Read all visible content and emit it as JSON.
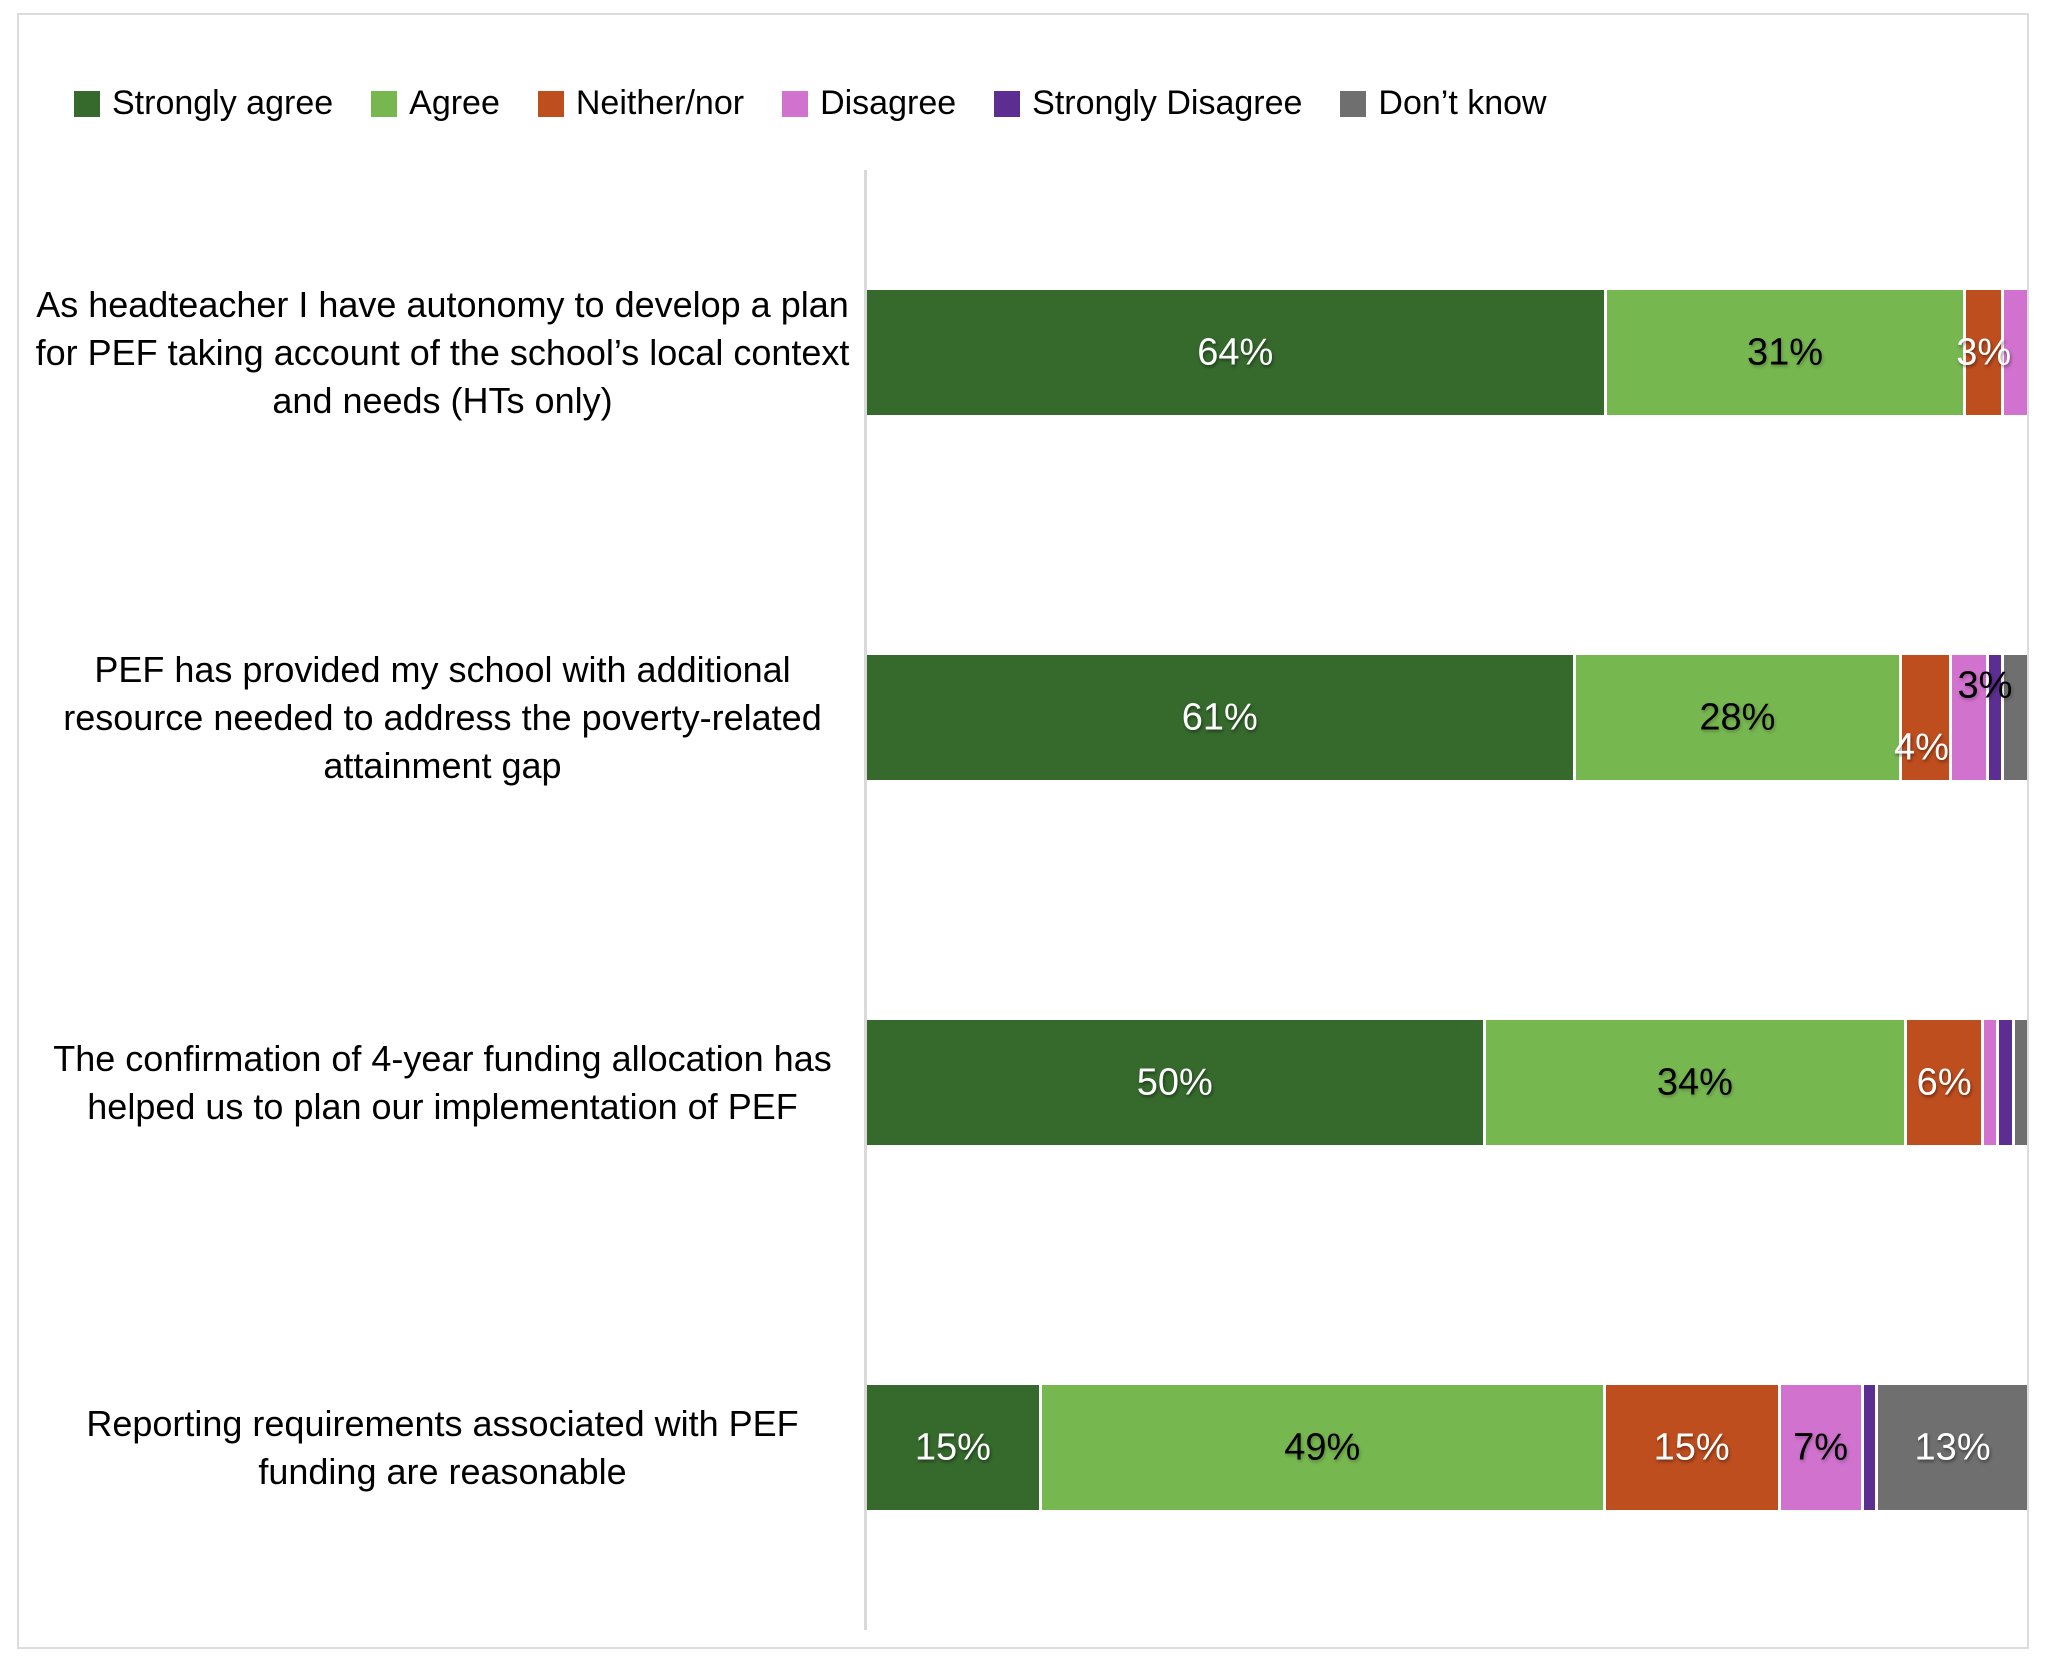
{
  "legend": {
    "items": [
      {
        "label": "Strongly agree",
        "color": "#366a2d"
      },
      {
        "label": "Agree",
        "color": "#77b750"
      },
      {
        "label": "Neither/nor",
        "color": "#bf4e1f"
      },
      {
        "label": "Disagree",
        "color": "#d072ce"
      },
      {
        "label": "Strongly Disagree",
        "color": "#5c2e91"
      },
      {
        "label": "Don’t know",
        "color": "#6f6f6f"
      }
    ]
  },
  "chart_data": {
    "type": "bar",
    "subtype": "horizontal_stacked_100",
    "unit": "%",
    "value_suffix": "%",
    "legend_position": "top",
    "grid": false,
    "axis_color": "#d9d9d9",
    "categories": [
      "As headteacher I have autonomy to develop a plan for PEF taking account of the school’s local context and needs (HTs only)",
      "PEF has provided my school with additional resource needed to address the poverty-related attainment gap",
      "The confirmation of 4-year funding allocation has helped us to plan our implementation of PEF",
      "Reporting requirements associated with PEF funding are reasonable"
    ],
    "series": [
      {
        "name": "Strongly agree",
        "color": "#366a2d",
        "label_color": "light",
        "values": [
          64,
          61,
          50,
          15
        ]
      },
      {
        "name": "Agree",
        "color": "#77b750",
        "label_color": "dark",
        "values": [
          31,
          28,
          34,
          49
        ]
      },
      {
        "name": "Neither/nor",
        "color": "#bf4e1f",
        "label_color": "light",
        "values": [
          3,
          4,
          6,
          15
        ]
      },
      {
        "name": "Disagree",
        "color": "#d072ce",
        "label_color": "dark",
        "values": [
          2,
          3,
          1,
          7
        ]
      },
      {
        "name": "Strongly Disagree",
        "color": "#5c2e91",
        "label_color": "light",
        "values": [
          0,
          1,
          1,
          1
        ]
      },
      {
        "name": "Don’t know",
        "color": "#6f6f6f",
        "label_color": "light",
        "values": [
          0,
          2,
          1,
          13
        ]
      }
    ],
    "label_min_value": 3,
    "label_offsets": {
      "1": {
        "2": {
          "dx": -4,
          "dy": 30
        },
        "3": {
          "dx": 16,
          "dy": -32
        }
      }
    }
  }
}
